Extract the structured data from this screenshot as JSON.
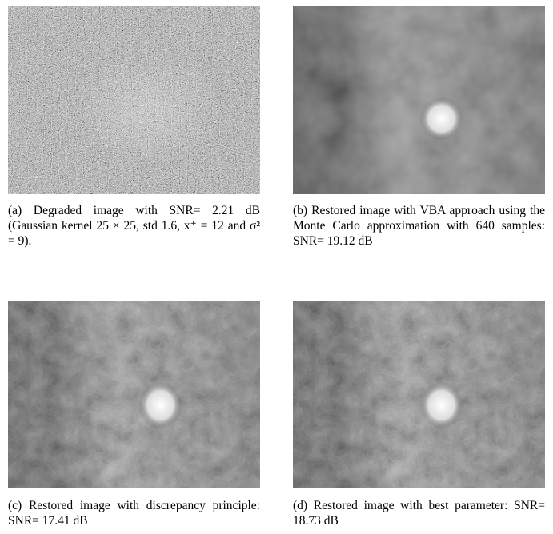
{
  "captions": [
    "(a) Degraded image with SNR= 2.21 dB (Gaussian kernel 25 × 25, std 1.6, x⁺ = 12 and σ² = 9).",
    "(b) Restored image with VBA approach using the Monte Carlo approximation with 640 samples: SNR= 19.12 dB",
    "(c) Restored image with discrepancy principle: SNR= 17.41 dB",
    "(d) Restored image with best parameter: SNR= 18.73 dB"
  ]
}
